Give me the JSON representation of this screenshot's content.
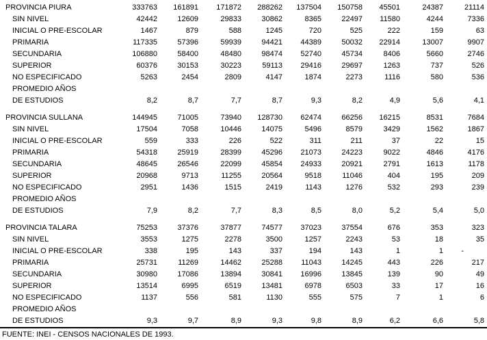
{
  "table": {
    "columns_count": 9,
    "text_color": "#000000",
    "background_color": "#ffffff",
    "sections": [
      {
        "title": "PROVINCIA PIURA",
        "totals": [
          "333763",
          "161891",
          "171872",
          "288262",
          "137504",
          "150758",
          "45501",
          "24387",
          "21114"
        ],
        "rows": [
          {
            "label": "SIN NIVEL",
            "values": [
              "42442",
              "12609",
              "29833",
              "30862",
              "8365",
              "22497",
              "11580",
              "4244",
              "7336"
            ]
          },
          {
            "label": "INICIAL O PRE-ESCOLAR",
            "values": [
              "1467",
              "879",
              "588",
              "1245",
              "720",
              "525",
              "222",
              "159",
              "63"
            ]
          },
          {
            "label": "PRIMARIA",
            "values": [
              "117335",
              "57396",
              "59939",
              "94421",
              "44389",
              "50032",
              "22914",
              "13007",
              "9907"
            ]
          },
          {
            "label": "SECUNDARIA",
            "values": [
              "106880",
              "58400",
              "48480",
              "98474",
              "52740",
              "45734",
              "8406",
              "5660",
              "2746"
            ]
          },
          {
            "label": "SUPERIOR",
            "values": [
              "60376",
              "30153",
              "30223",
              "59113",
              "29416",
              "29697",
              "1263",
              "737",
              "526"
            ]
          },
          {
            "label": "NO ESPECIFICADO",
            "values": [
              "5263",
              "2454",
              "2809",
              "4147",
              "1874",
              "2273",
              "1116",
              "580",
              "536"
            ]
          },
          {
            "label": "PROMEDIO AÑOS",
            "values": [
              "",
              "",
              "",
              "",
              "",
              "",
              "",
              "",
              ""
            ]
          },
          {
            "label": "DE ESTUDIOS",
            "values": [
              "8,2",
              "8,7",
              "7,7",
              "8,7",
              "9,3",
              "8,2",
              "4,9",
              "5,6",
              "4,1"
            ]
          }
        ]
      },
      {
        "title": "PROVINCIA SULLANA",
        "totals": [
          "144945",
          "71005",
          "73940",
          "128730",
          "62474",
          "66256",
          "16215",
          "8531",
          "7684"
        ],
        "rows": [
          {
            "label": "SIN NIVEL",
            "values": [
              "17504",
              "7058",
              "10446",
              "14075",
              "5496",
              "8579",
              "3429",
              "1562",
              "1867"
            ]
          },
          {
            "label": "INICIAL O PRE-ESCOLAR",
            "values": [
              "559",
              "333",
              "226",
              "522",
              "311",
              "211",
              "37",
              "22",
              "15"
            ]
          },
          {
            "label": "PRIMARIA",
            "values": [
              "54318",
              "25919",
              "28399",
              "45296",
              "21073",
              "24223",
              "9022",
              "4846",
              "4176"
            ]
          },
          {
            "label": "SECUNDARIA",
            "values": [
              "48645",
              "26546",
              "22099",
              "45854",
              "24933",
              "20921",
              "2791",
              "1613",
              "1178"
            ]
          },
          {
            "label": "SUPERIOR",
            "values": [
              "20968",
              "9713",
              "11255",
              "20564",
              "9518",
              "11046",
              "404",
              "195",
              "209"
            ]
          },
          {
            "label": "NO ESPECIFICADO",
            "values": [
              "2951",
              "1436",
              "1515",
              "2419",
              "1143",
              "1276",
              "532",
              "293",
              "239"
            ]
          },
          {
            "label": "PROMEDIO AÑOS",
            "values": [
              "",
              "",
              "",
              "",
              "",
              "",
              "",
              "",
              ""
            ]
          },
          {
            "label": "DE ESTUDIOS",
            "values": [
              "7,9",
              "8,2",
              "7,7",
              "8,3",
              "8,5",
              "8,0",
              "5,2",
              "5,4",
              "5,0"
            ]
          }
        ]
      },
      {
        "title": "PROVINCIA TALARA",
        "totals": [
          "75253",
          "37376",
          "37877",
          "74577",
          "37023",
          "37554",
          "676",
          "353",
          "323"
        ],
        "rows": [
          {
            "label": "SIN NIVEL",
            "values": [
              "3553",
              "1275",
              "2278",
              "3500",
              "1257",
              "2243",
              "53",
              "18",
              "35"
            ]
          },
          {
            "label": "INICIAL O PRE-ESCOLAR",
            "values": [
              "338",
              "195",
              "143",
              "337",
              "194",
              "143",
              "1",
              "1",
              "-"
            ]
          },
          {
            "label": "PRIMARIA",
            "values": [
              "25731",
              "11269",
              "14462",
              "25288",
              "11043",
              "14245",
              "443",
              "226",
              "217"
            ]
          },
          {
            "label": "SECUNDARIA",
            "values": [
              "30980",
              "17086",
              "13894",
              "30841",
              "16996",
              "13845",
              "139",
              "90",
              "49"
            ]
          },
          {
            "label": "SUPERIOR",
            "values": [
              "13514",
              "6995",
              "6519",
              "13481",
              "6978",
              "6503",
              "33",
              "17",
              "16"
            ]
          },
          {
            "label": "NO ESPECIFICADO",
            "values": [
              "1137",
              "556",
              "581",
              "1130",
              "555",
              "575",
              "7",
              "1",
              "6"
            ]
          },
          {
            "label": "PROMEDIO AÑOS",
            "values": [
              "",
              "",
              "",
              "",
              "",
              "",
              "",
              "",
              ""
            ]
          },
          {
            "label": "DE ESTUDIOS",
            "values": [
              "9,3",
              "9,7",
              "8,9",
              "9,3",
              "9,8",
              "8,9",
              "6,2",
              "6,6",
              "5,8"
            ]
          }
        ]
      }
    ]
  },
  "footer": {
    "source": "FUENTE: INEI - CENSOS NACIONALES DE 1993."
  }
}
